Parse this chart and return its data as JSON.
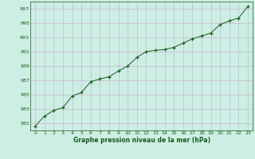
{
  "x": [
    0,
    1,
    2,
    3,
    4,
    5,
    6,
    7,
    8,
    9,
    10,
    11,
    12,
    13,
    14,
    15,
    16,
    17,
    18,
    19,
    20,
    21,
    22,
    23
  ],
  "y": [
    980.6,
    982.0,
    982.8,
    983.2,
    984.8,
    985.3,
    986.8,
    987.2,
    987.5,
    988.3,
    989.0,
    990.2,
    991.0,
    991.2,
    991.3,
    991.6,
    992.2,
    992.8,
    993.2,
    993.6,
    994.8,
    995.3,
    995.7,
    997.3
  ],
  "ylim": [
    980.0,
    998.0
  ],
  "xlim": [
    -0.5,
    23.5
  ],
  "yticks": [
    981,
    983,
    985,
    987,
    989,
    991,
    993,
    995,
    997
  ],
  "xticks": [
    0,
    1,
    2,
    3,
    4,
    5,
    6,
    7,
    8,
    9,
    10,
    11,
    12,
    13,
    14,
    15,
    16,
    17,
    18,
    19,
    20,
    21,
    22,
    23
  ],
  "xlabel": "Graphe pression niveau de la mer (hPa)",
  "line_color": "#1a5c1a",
  "marker": "+",
  "bg_color": "#cceee4",
  "grid_color": "#c8b8c8",
  "tick_label_color": "#1a5c1a",
  "xlabel_color": "#1a5c1a"
}
